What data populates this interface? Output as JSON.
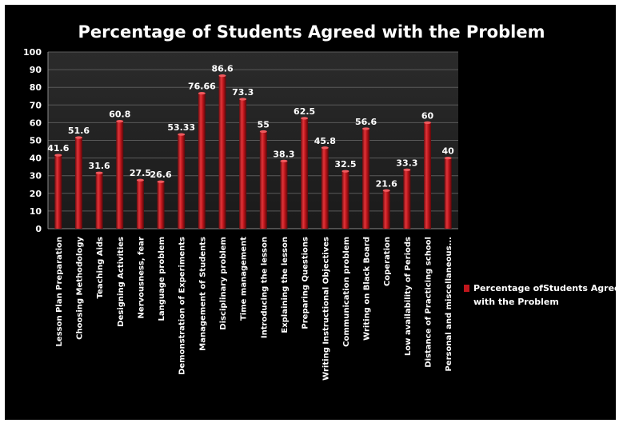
{
  "chart_data": {
    "type": "bar",
    "title": "Percentage of Students Agreed with the Problem",
    "xlabel": "",
    "ylabel": "",
    "ylim": [
      0,
      100
    ],
    "yticks": [
      0,
      10,
      20,
      30,
      40,
      50,
      60,
      70,
      80,
      90,
      100
    ],
    "grid": true,
    "legend_position": "right",
    "bar_color": "#c0161c",
    "categories": [
      "Lesson Plan Preparation",
      "Choosing Methodology",
      "Teaching Aids",
      "Designing Activities",
      "Nervousness, fear",
      "Language problem",
      "Demonstration of Experiments",
      "Management of Students",
      "Disciplinary problem",
      "Time  management",
      "Introducing the lesson",
      "Explaining the lesson",
      "Preparing Questions",
      "Writing Instructional Objectives",
      "Communication problem",
      "Writing on Black Board",
      "Coperation",
      "Low availability  of Periods",
      "Distance of Practicing school",
      "Personal and miscellaneous..."
    ],
    "series": [
      {
        "name": "Percentage ofStudents Agreed with the Problem",
        "values": [
          41.6,
          51.6,
          31.6,
          60.8,
          27.5,
          26.6,
          53.33,
          76.66,
          86.6,
          73.3,
          55,
          38.3,
          62.5,
          45.8,
          32.5,
          56.6,
          21.6,
          33.3,
          60,
          40
        ],
        "labels": [
          "41.6",
          "51.6",
          "31.6",
          "60.8",
          "27.5",
          "26.6",
          "53.33",
          "76.66",
          "86.6",
          "73.3",
          "55",
          "38.3",
          "62.5",
          "45.8",
          "32.5",
          "56.6",
          "21.6",
          "33.3",
          "60",
          "40"
        ]
      }
    ]
  },
  "legend": {
    "line1": "Percentage ofStudents Agree",
    "line2": "with the Problem"
  }
}
